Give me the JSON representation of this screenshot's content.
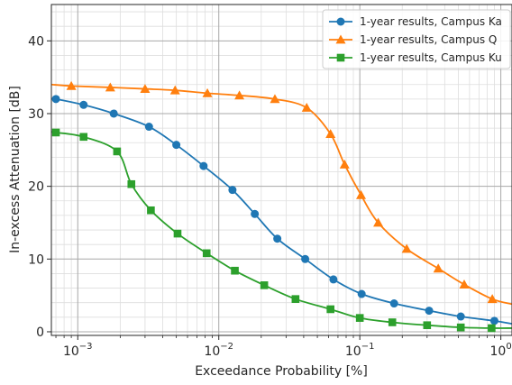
{
  "chart_data": {
    "type": "line",
    "title": "",
    "xlabel": "Exceedance Probability [%]",
    "ylabel": "In-excess Attenuation [dB]",
    "xscale": "log",
    "xlim": [
      0.00065,
      1.2
    ],
    "ylim": [
      -0.5,
      45
    ],
    "grid": true,
    "legend_position": "upper right",
    "x_ticks": [
      {
        "value": 0.001,
        "base": "10",
        "exp": "−3"
      },
      {
        "value": 0.01,
        "base": "10",
        "exp": "−2"
      },
      {
        "value": 0.1,
        "base": "10",
        "exp": "−1"
      },
      {
        "value": 1,
        "base": "10",
        "exp": "0"
      }
    ],
    "y_ticks": [
      {
        "value": 0,
        "label": "0"
      },
      {
        "value": 10,
        "label": "10"
      },
      {
        "value": 20,
        "label": "20"
      },
      {
        "value": 30,
        "label": "30"
      },
      {
        "value": 40,
        "label": "40"
      }
    ],
    "series": [
      {
        "name": "1-year results, Campus Ka",
        "color": "#1f77b4",
        "marker": "circle",
        "x": [
          0.00065,
          0.0007,
          0.0011,
          0.0018,
          0.0032,
          0.005,
          0.0078,
          0.0125,
          0.018,
          0.026,
          0.041,
          0.065,
          0.103,
          0.175,
          0.31,
          0.52,
          0.9,
          1.2
        ],
        "y": [
          32.0,
          32.0,
          31.2,
          30.0,
          28.2,
          25.7,
          22.8,
          19.5,
          16.2,
          12.8,
          10.0,
          7.2,
          5.2,
          3.9,
          2.9,
          2.1,
          1.5,
          1.1
        ]
      },
      {
        "name": "1-year results, Campus Q",
        "color": "#ff7f0e",
        "marker": "triangle",
        "x": [
          0.00065,
          0.0009,
          0.0017,
          0.003,
          0.0049,
          0.0083,
          0.014,
          0.025,
          0.042,
          0.062,
          0.078,
          0.102,
          0.135,
          0.215,
          0.36,
          0.55,
          0.87,
          1.2
        ],
        "y": [
          34.0,
          33.8,
          33.6,
          33.4,
          33.2,
          32.8,
          32.5,
          32.0,
          30.8,
          27.2,
          23.0,
          18.8,
          15.0,
          11.4,
          8.7,
          6.5,
          4.5,
          3.8
        ]
      },
      {
        "name": "1-year results, Campus Ku",
        "color": "#2ca02c",
        "marker": "square",
        "x": [
          0.00065,
          0.0007,
          0.0011,
          0.0019,
          0.0024,
          0.0033,
          0.0051,
          0.0082,
          0.013,
          0.021,
          0.035,
          0.062,
          0.1,
          0.17,
          0.3,
          0.52,
          0.86,
          1.2
        ],
        "y": [
          27.5,
          27.4,
          26.8,
          24.8,
          20.3,
          16.7,
          13.5,
          10.8,
          8.4,
          6.4,
          4.5,
          3.1,
          1.9,
          1.3,
          0.9,
          0.6,
          0.5,
          0.5
        ]
      }
    ]
  }
}
